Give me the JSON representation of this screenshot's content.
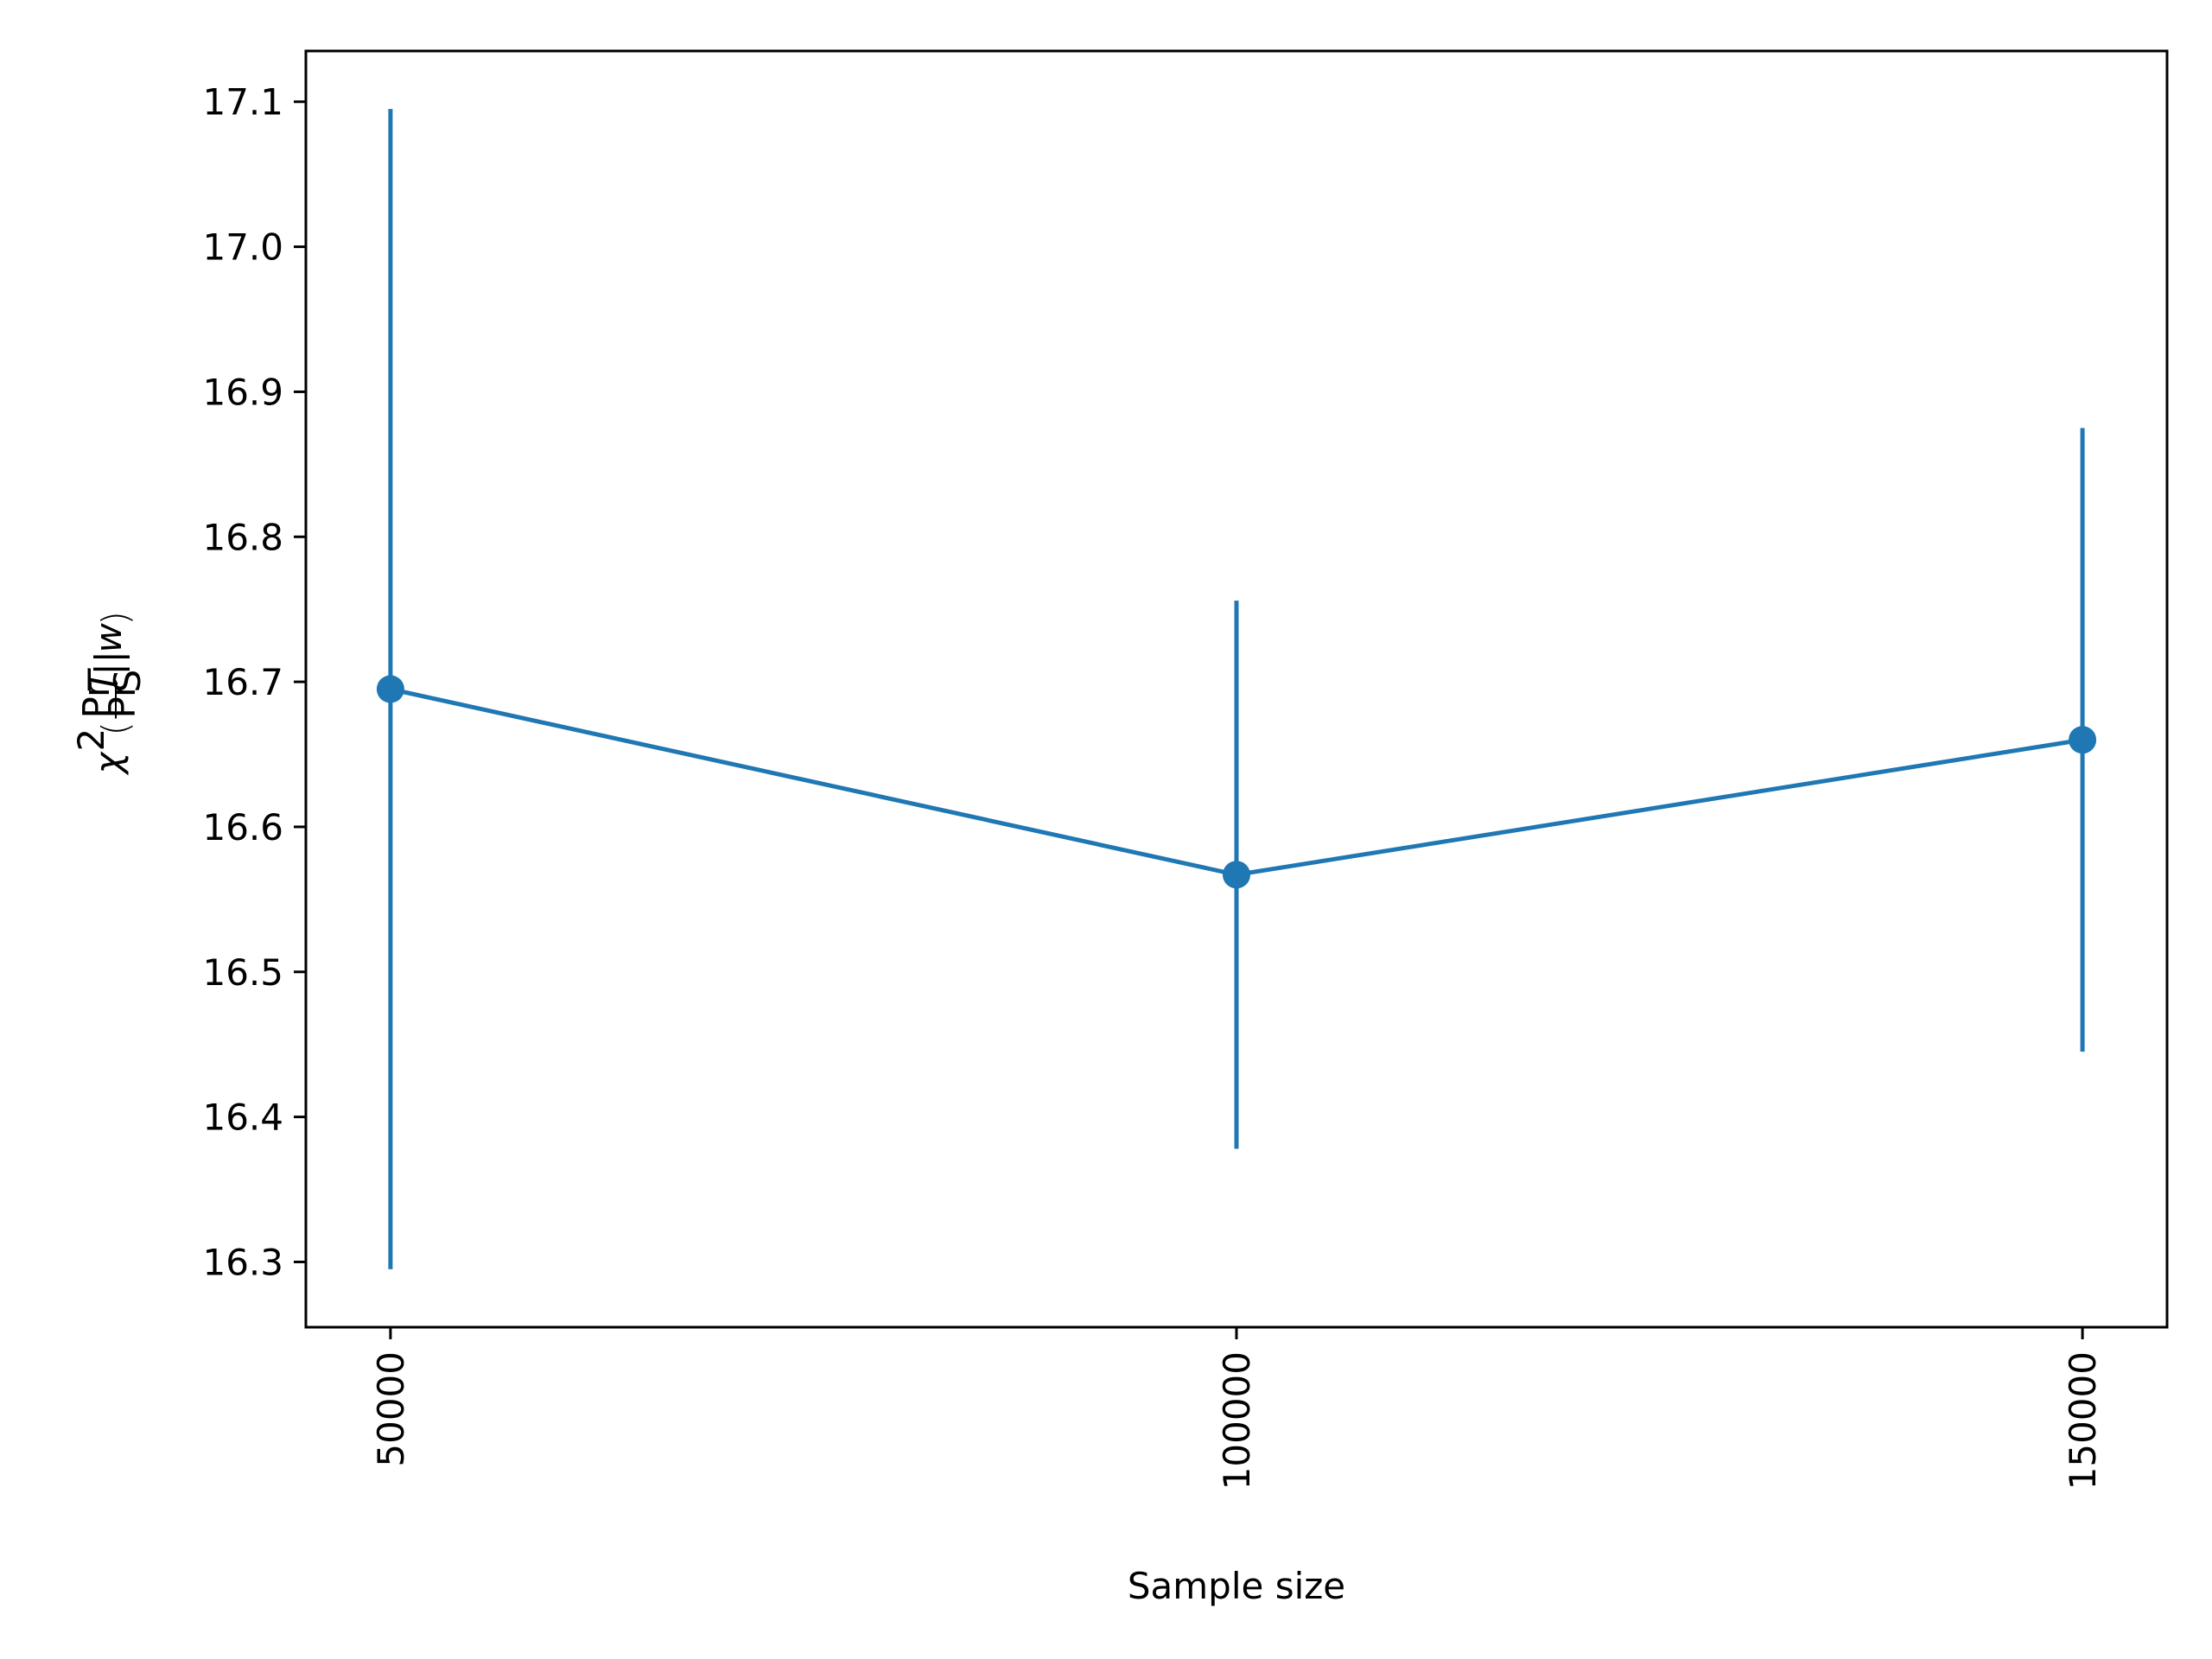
{
  "chart_data": {
    "type": "line",
    "title": "",
    "xlabel": "Sample size",
    "ylabel": "χ²(Pr_T/Pr_S||w)",
    "ylabel_parts": {
      "chi": "χ",
      "sup": "2",
      "open": "(",
      "num": "Pr",
      "num_sub": "T",
      "den": "Pr",
      "den_sub": "S",
      "bars": "||",
      "w": "w",
      "close": ")"
    },
    "x": [
      50000,
      100000,
      150000
    ],
    "x_tick_labels": [
      "50000",
      "100000",
      "150000"
    ],
    "xlim": [
      45000,
      155000
    ],
    "ylim": [
      16.255,
      17.135
    ],
    "y_ticks": [
      16.3,
      16.4,
      16.5,
      16.6,
      16.7,
      16.8,
      16.9,
      17.0,
      17.1
    ],
    "y_tick_labels": [
      "16.3",
      "16.4",
      "16.5",
      "16.6",
      "16.7",
      "16.8",
      "16.9",
      "17.0",
      "17.1"
    ],
    "series": [
      {
        "values": [
          16.695,
          16.567,
          16.66
        ],
        "err_lower": [
          16.295,
          16.378,
          16.445
        ],
        "err_upper": [
          17.095,
          16.756,
          16.875
        ],
        "color": "#1f77b4",
        "marker": "circle"
      }
    ],
    "grid": false,
    "x_tick_rotation": "vertical"
  }
}
